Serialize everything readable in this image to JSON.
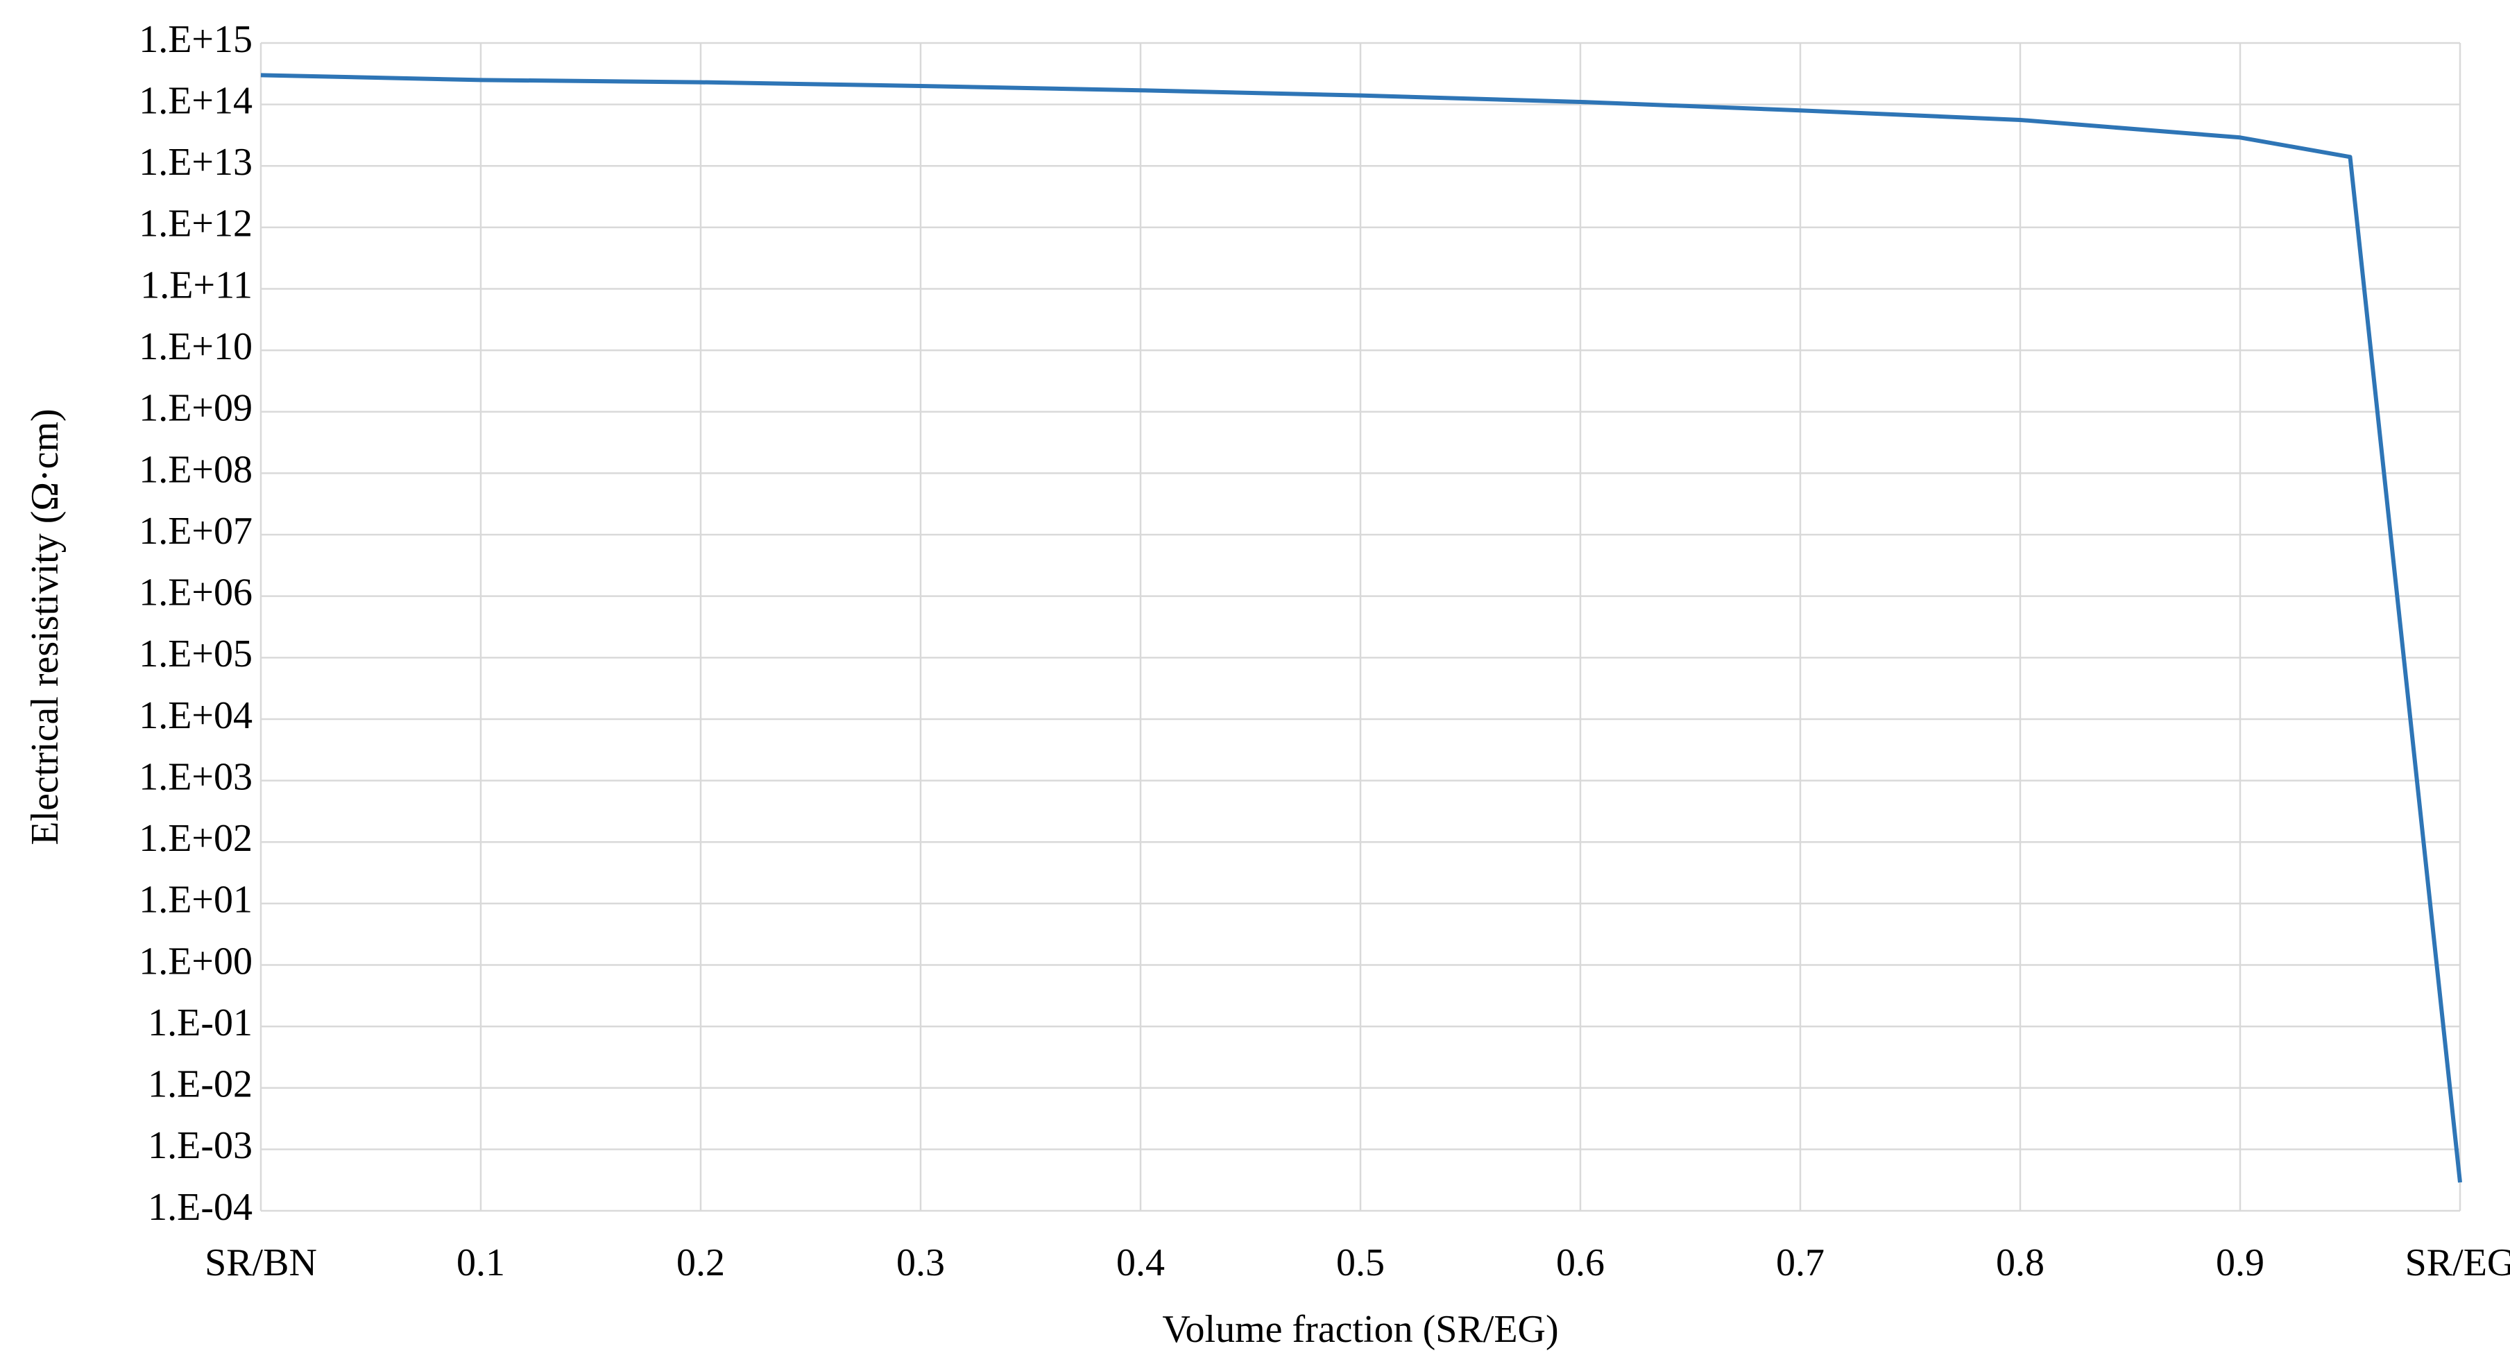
{
  "chart_data": {
    "type": "line",
    "xlabel": "Volume fraction (SR/EG)",
    "ylabel": "Electrical resistivity (Ω·cm)",
    "yscale": "log",
    "grid": true,
    "xlim": [
      0,
      1
    ],
    "ylim": [
      0.0001,
      1000000000000000.0
    ],
    "xticks": [
      {
        "value": 0,
        "label": "SR/BN"
      },
      0.1,
      0.2,
      0.3,
      0.4,
      0.5,
      0.6,
      0.7,
      0.8,
      0.9,
      {
        "value": 1,
        "label": "SR/EG"
      }
    ],
    "yticks": [
      {
        "value": 0.0001,
        "label": "1.E-04"
      },
      {
        "value": 0.001,
        "label": "1.E-03"
      },
      {
        "value": 0.01,
        "label": "1.E-02"
      },
      {
        "value": 0.1,
        "label": "1.E-01"
      },
      {
        "value": 1,
        "label": "1.E+00"
      },
      {
        "value": 10,
        "label": "1.E+01"
      },
      {
        "value": 100,
        "label": "1.E+02"
      },
      {
        "value": 1000,
        "label": "1.E+03"
      },
      {
        "value": 10000.0,
        "label": "1.E+04"
      },
      {
        "value": 100000.0,
        "label": "1.E+05"
      },
      {
        "value": 1000000.0,
        "label": "1.E+06"
      },
      {
        "value": 10000000.0,
        "label": "1.E+07"
      },
      {
        "value": 100000000.0,
        "label": "1.E+08"
      },
      {
        "value": 1000000000.0,
        "label": "1.E+09"
      },
      {
        "value": 10000000000.0,
        "label": "1.E+10"
      },
      {
        "value": 100000000000.0,
        "label": "1.E+11"
      },
      {
        "value": 1000000000000.0,
        "label": "1.E+12"
      },
      {
        "value": 10000000000000.0,
        "label": "1.E+13"
      },
      {
        "value": 100000000000000.0,
        "label": "1.E+14"
      },
      {
        "value": 1000000000000000.0,
        "label": "1.E+15"
      }
    ],
    "series": [
      {
        "color": "#2e75b6",
        "x": [
          0,
          0.1,
          0.2,
          0.3,
          0.4,
          0.5,
          0.6,
          0.7,
          0.8,
          0.9,
          0.95,
          1
        ],
        "values": [
          300000000000000.0,
          250000000000000.0,
          230000000000000.0,
          200000000000000.0,
          170000000000000.0,
          140000000000000.0,
          110000000000000.0,
          80000000000000.0,
          56000000000000.0,
          29000000000000.0,
          14000000000000.0,
          0.00029
        ]
      }
    ]
  }
}
